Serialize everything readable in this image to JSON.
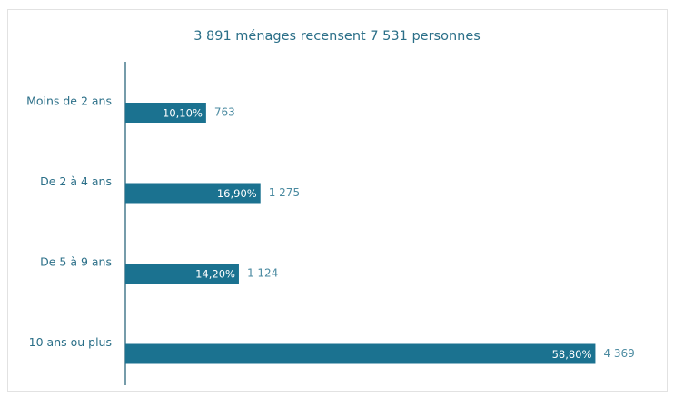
{
  "chart_data": {
    "type": "bar",
    "orientation": "horizontal",
    "title": "3 891 ménages recensent 7 531 personnes",
    "categories": [
      "Moins de 2 ans",
      "De 2 à 4 ans",
      "De 5 à 9 ans",
      "10 ans ou plus"
    ],
    "values": [
      10.1,
      16.9,
      14.2,
      58.8
    ],
    "value_labels": [
      "10,10%",
      "16,90%",
      "14,20%",
      "58,80%"
    ],
    "counts": [
      763,
      1275,
      1124,
      4369
    ],
    "count_labels": [
      "763",
      "1 275",
      "1 124",
      "4 369"
    ],
    "color": "#1b7290"
  }
}
